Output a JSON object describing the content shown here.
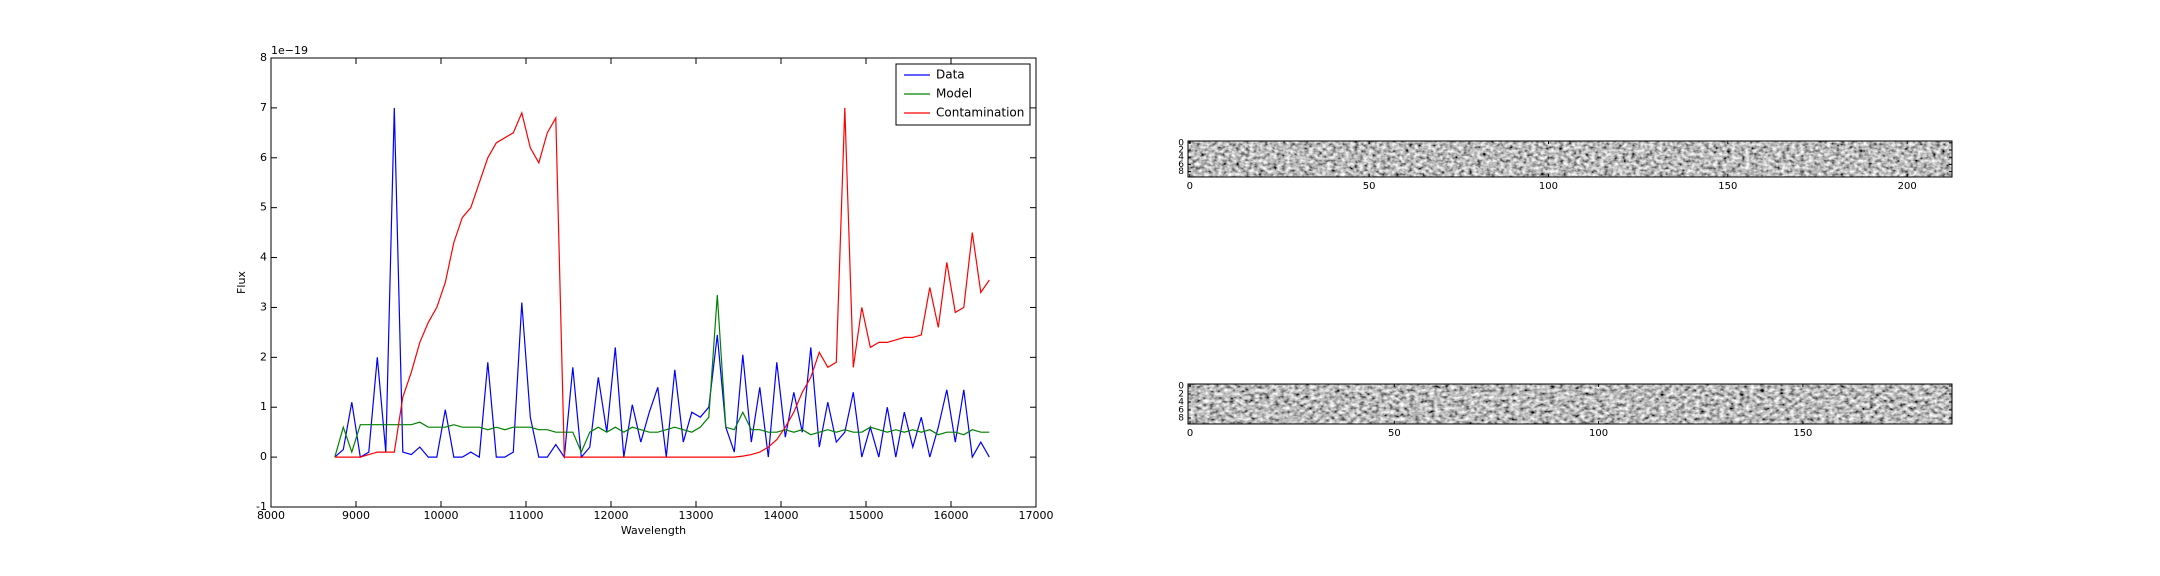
{
  "chart_data": [
    {
      "type": "line",
      "xlabel": "Wavelength",
      "ylabel": "Flux",
      "y_offset_label": "1e−19",
      "x": [
        8750,
        8850,
        8950,
        9050,
        9150,
        9250,
        9350,
        9450,
        9550,
        9650,
        9750,
        9850,
        9950,
        10050,
        10150,
        10250,
        10350,
        10450,
        10550,
        10650,
        10750,
        10850,
        10950,
        11050,
        11150,
        11250,
        11350,
        11450,
        11550,
        11650,
        11750,
        11850,
        11950,
        12050,
        12150,
        12250,
        12350,
        12450,
        12550,
        12650,
        12750,
        12850,
        12950,
        13050,
        13150,
        13250,
        13350,
        13450,
        13550,
        13650,
        13750,
        13850,
        13950,
        14050,
        14150,
        14250,
        14350,
        14450,
        14550,
        14650,
        14750,
        14850,
        14950,
        15050,
        15150,
        15250,
        15350,
        15450,
        15550,
        15650,
        15750,
        15850,
        15950,
        16050,
        16150,
        16250,
        16350,
        16450
      ],
      "series": [
        {
          "name": "Data",
          "color": "#0000ff",
          "values": [
            0,
            0.15,
            1.1,
            0,
            0.1,
            2.0,
            0.1,
            7.0,
            0.1,
            0.05,
            0.2,
            0,
            0,
            0.95,
            0,
            0,
            0.1,
            0,
            1.9,
            0,
            0,
            0.1,
            3.1,
            0.8,
            0,
            0,
            0.25,
            0,
            1.8,
            0,
            0.2,
            1.6,
            0.5,
            2.2,
            0,
            1.05,
            0.3,
            0.9,
            1.4,
            0,
            1.75,
            0.3,
            0.9,
            0.8,
            1.0,
            2.45,
            0.6,
            0.1,
            2.05,
            0.3,
            1.4,
            0,
            1.9,
            0.4,
            1.3,
            0.5,
            2.2,
            0.2,
            1.1,
            0.3,
            0.5,
            1.3,
            0,
            0.6,
            0,
            1.0,
            0,
            0.9,
            0.2,
            0.8,
            0,
            0.6,
            1.35,
            0.3,
            1.35,
            0,
            0.3,
            0
          ]
        },
        {
          "name": "Model",
          "color": "#008000",
          "values": [
            0,
            0.6,
            0.1,
            0.65,
            0.65,
            0.65,
            0.65,
            0.65,
            0.65,
            0.65,
            0.7,
            0.6,
            0.6,
            0.6,
            0.65,
            0.6,
            0.6,
            0.6,
            0.55,
            0.6,
            0.55,
            0.6,
            0.6,
            0.6,
            0.55,
            0.55,
            0.5,
            0.5,
            0.5,
            0.1,
            0.5,
            0.6,
            0.5,
            0.6,
            0.5,
            0.6,
            0.55,
            0.5,
            0.5,
            0.55,
            0.6,
            0.55,
            0.5,
            0.6,
            0.8,
            3.25,
            0.6,
            0.55,
            0.9,
            0.55,
            0.55,
            0.5,
            0.5,
            0.55,
            0.5,
            0.55,
            0.45,
            0.5,
            0.55,
            0.5,
            0.55,
            0.5,
            0.5,
            0.6,
            0.55,
            0.5,
            0.55,
            0.5,
            0.55,
            0.5,
            0.55,
            0.45,
            0.5,
            0.5,
            0.45,
            0.55,
            0.5,
            0.5
          ]
        },
        {
          "name": "Contamination",
          "color": "#ff0000",
          "values": [
            0,
            0,
            0,
            0,
            0.05,
            0.1,
            0.1,
            0.1,
            1.2,
            1.7,
            2.3,
            2.7,
            3.0,
            3.5,
            4.3,
            4.8,
            5.0,
            5.5,
            6.0,
            6.3,
            6.4,
            6.5,
            6.9,
            6.2,
            5.9,
            6.5,
            6.8,
            0,
            0,
            0,
            0,
            0,
            0,
            0,
            0,
            0,
            0,
            0,
            0,
            0,
            0,
            0,
            0,
            0,
            0,
            0,
            0,
            0,
            0.02,
            0.05,
            0.1,
            0.2,
            0.35,
            0.6,
            0.9,
            1.3,
            1.6,
            2.1,
            1.8,
            1.9,
            7.0,
            1.8,
            3.0,
            2.2,
            2.3,
            2.3,
            2.35,
            2.4,
            2.4,
            2.45,
            3.4,
            2.6,
            3.9,
            2.9,
            3.0,
            4.5,
            3.3,
            3.55
          ]
        }
      ],
      "xlim": [
        8000,
        17000
      ],
      "xticks": [
        8000,
        9000,
        10000,
        11000,
        12000,
        13000,
        14000,
        15000,
        16000,
        17000
      ],
      "ylim": [
        -1,
        8
      ],
      "yticks": [
        -1,
        0,
        1,
        2,
        3,
        4,
        5,
        6,
        7,
        8
      ],
      "legend": "upper right"
    },
    {
      "type": "image",
      "xlim": [
        -0.5,
        212.5
      ],
      "xticks": [
        0,
        50,
        100,
        150,
        200
      ],
      "ylim": [
        9.5,
        -0.5
      ],
      "yticks": [
        0,
        2,
        4,
        6,
        8
      ]
    },
    {
      "type": "image",
      "xlim": [
        -0.5,
        186.5
      ],
      "xticks": [
        0,
        50,
        100,
        150
      ],
      "ylim": [
        9.5,
        -0.5
      ],
      "yticks": [
        0,
        2,
        4,
        6,
        8
      ]
    }
  ]
}
